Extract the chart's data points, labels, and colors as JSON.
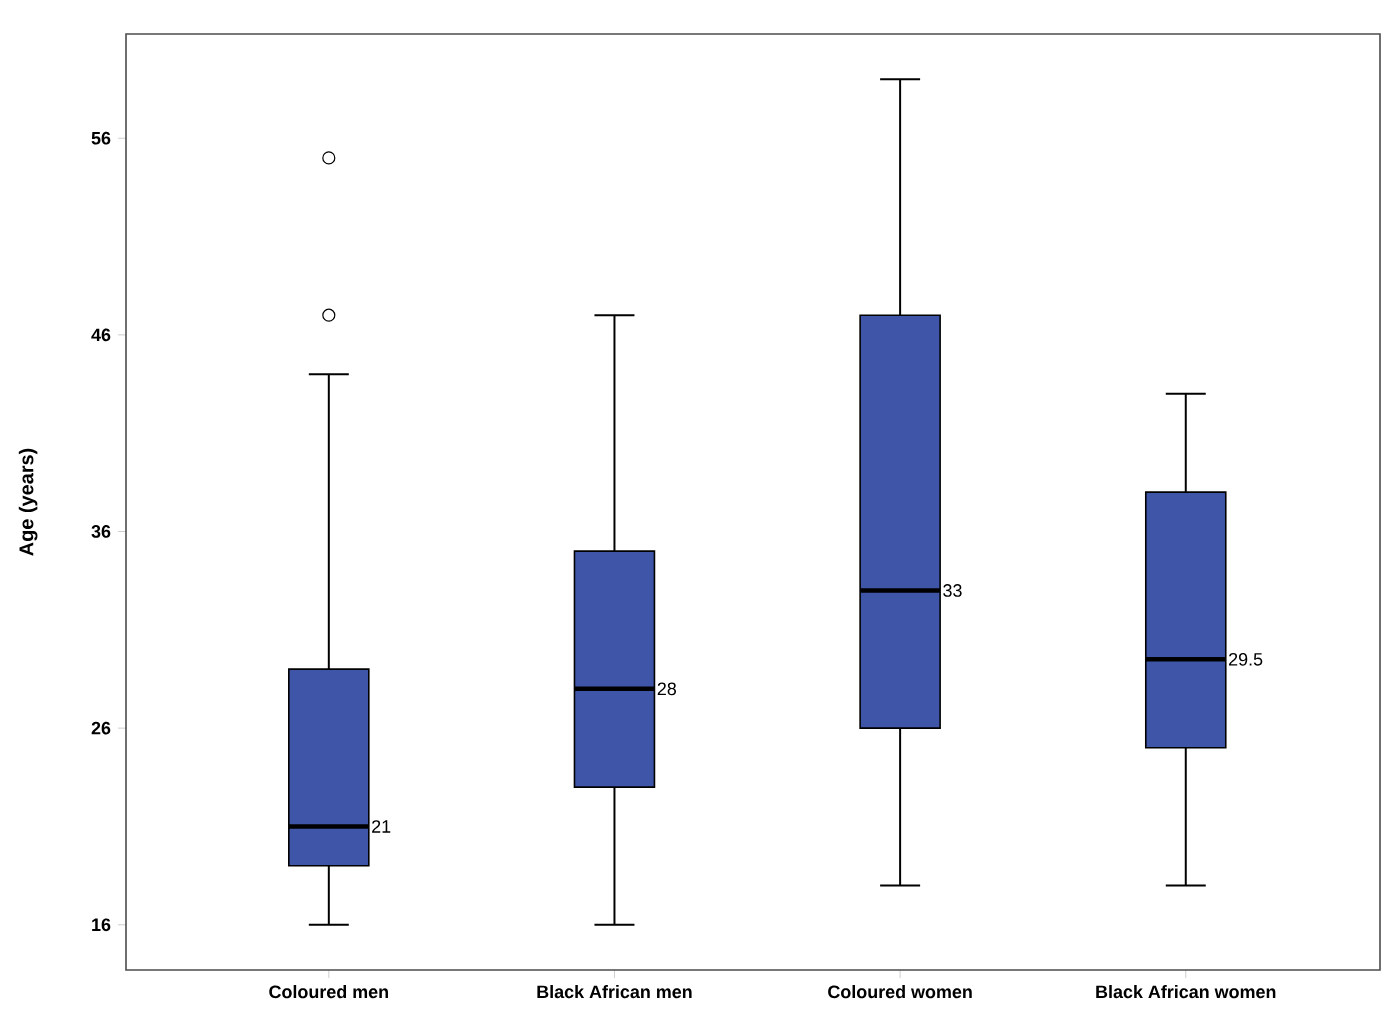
{
  "chart_data": {
    "type": "box",
    "ylabel": "Age (years)",
    "categories": [
      "Coloured men",
      "Black African men",
      "Coloured women",
      "Black African women"
    ],
    "boxes": [
      {
        "low": 16,
        "q1": 19,
        "median": 21,
        "q3": 29,
        "high": 44,
        "outliers": [
          55,
          47
        ]
      },
      {
        "low": 16,
        "q1": 23,
        "median": 28,
        "q3": 35,
        "high": 47
      },
      {
        "low": 18,
        "q1": 26,
        "median": 33,
        "q3": 47,
        "high": 59
      },
      {
        "low": 18,
        "q1": 25,
        "median": 29.5,
        "q3": 38,
        "high": 43
      }
    ],
    "value_labels": [
      "21",
      "28",
      "33",
      "29.5"
    ],
    "color": "#3f56a8",
    "ylim": [
      13.7,
      61.3
    ],
    "yticks": [
      16,
      26,
      36,
      46,
      56
    ]
  }
}
